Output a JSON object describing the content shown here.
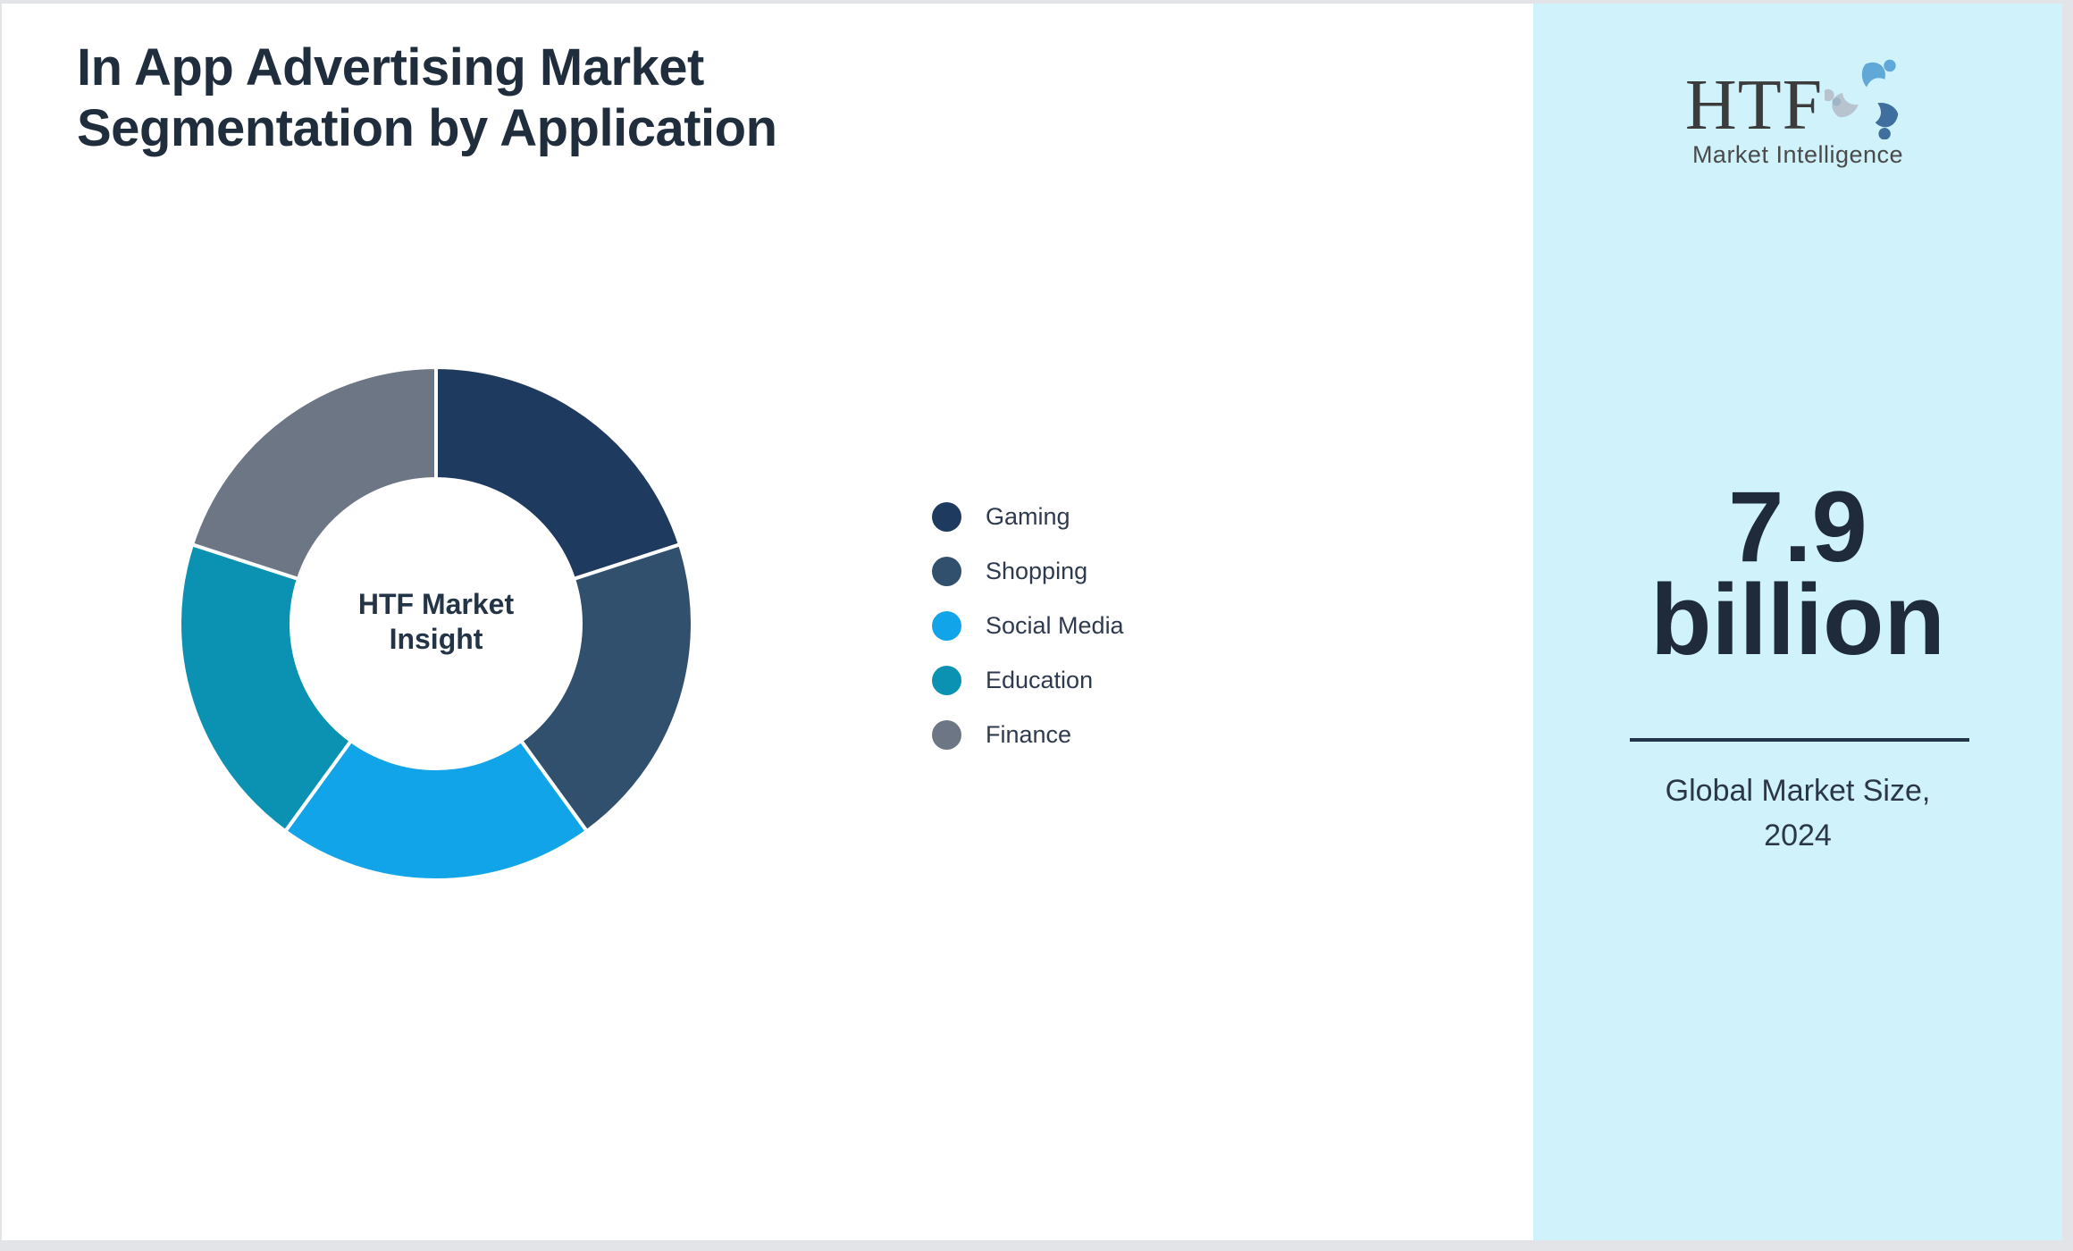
{
  "header": {
    "title_line1": "In App Advertising Market",
    "title_line2": "Segmentation by Application"
  },
  "chart_data": {
    "type": "pie",
    "subtype": "donut",
    "title": "In App Advertising Market Segmentation by Application",
    "categories": [
      "Gaming",
      "Shopping",
      "Social Media",
      "Education",
      "Finance"
    ],
    "values": [
      20,
      20,
      20,
      20,
      20
    ],
    "colors": [
      "#1f3a5f",
      "#31506e",
      "#11a4e8",
      "#0b91b2",
      "#6d7684"
    ],
    "legend_position": "right",
    "center_label_line1": "HTF Market",
    "center_label_line2": "Insight"
  },
  "sidebar": {
    "background": "#cff2fb",
    "logo": {
      "name": "HTF",
      "subtitle": "Market Intelligence",
      "icon": "htf-swirl-figures-icon",
      "icon_colors": [
        "#5fa8d7",
        "#3e6f9e",
        "#b7c4d0"
      ]
    },
    "stat_value_line1": "7.9",
    "stat_value_line2": "billion",
    "stat_caption_line1": "Global Market Size,",
    "stat_caption_line2": "2024"
  }
}
